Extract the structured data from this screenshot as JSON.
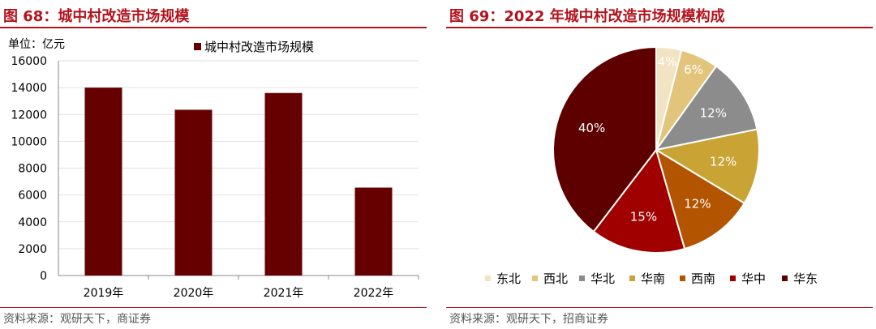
{
  "left": {
    "title": "图 68：城中村改造市场规模",
    "source": "资料来源：观研天下，商证券"
  },
  "right": {
    "title": "图 69：2022 年城中村改造市场规模构成",
    "source": "资料来源：观研天下，招商证券"
  },
  "chart_data": [
    {
      "type": "bar",
      "unit_label": "单位：亿元",
      "categories": [
        "2019年",
        "2020年",
        "2021年",
        "2022年"
      ],
      "series": [
        {
          "name": "城中村改造市场规模",
          "values": [
            14000,
            12350,
            13600,
            6550
          ],
          "color": "#660000"
        }
      ],
      "ylim": [
        0,
        16000
      ],
      "yticks": [
        0,
        2000,
        4000,
        6000,
        8000,
        10000,
        12000,
        14000,
        16000
      ],
      "grid": true,
      "legend": "top"
    },
    {
      "type": "pie",
      "labels": [
        "东北",
        "西北",
        "华北",
        "华南",
        "西南",
        "华中",
        "华东"
      ],
      "values": [
        4,
        6,
        12,
        12,
        12,
        15,
        40
      ],
      "value_labels": [
        "4%",
        "6%",
        "12%",
        "12%",
        "12%",
        "15%",
        "40%"
      ],
      "colors": [
        "#f2e3c3",
        "#e3c47b",
        "#8c8c8c",
        "#c9a334",
        "#b35400",
        "#a00000",
        "#5e0000"
      ],
      "label_colors": [
        "#ffffff",
        "#ffffff",
        "#ffffff",
        "#ffffff",
        "#ffffff",
        "#ffffff",
        "#ffffff"
      ],
      "legend": "bottom"
    }
  ]
}
